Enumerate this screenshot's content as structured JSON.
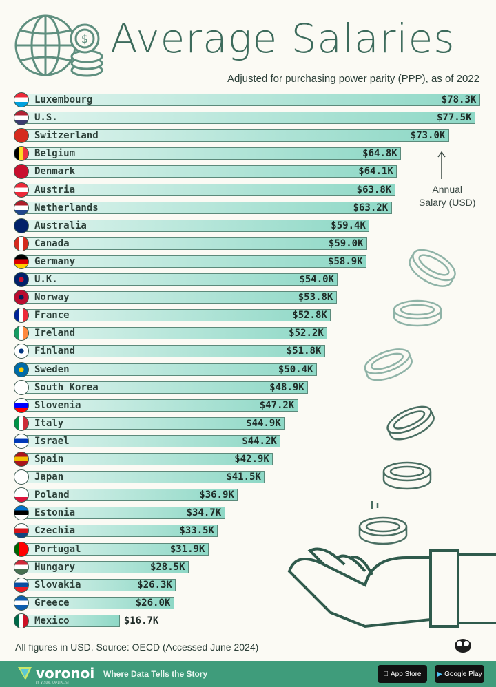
{
  "header": {
    "title": "Average Salaries",
    "subtitle": "Adjusted for purchasing power parity (PPP), as of 2022",
    "icons": [
      "globe-icon",
      "coin-stack-icon"
    ]
  },
  "annotation": {
    "line1": "Annual",
    "line2": "Salary (USD)"
  },
  "chart_data": {
    "type": "bar",
    "orientation": "horizontal",
    "title": "Average Salaries",
    "subtitle": "Adjusted for purchasing power parity (PPP), as of 2022",
    "unit": "Annual Salary (USD)",
    "categories": [
      "Luxembourg",
      "U.S.",
      "Switzerland",
      "Belgium",
      "Denmark",
      "Austria",
      "Netherlands",
      "Australia",
      "Canada",
      "Germany",
      "U.K.",
      "Norway",
      "France",
      "Ireland",
      "Finland",
      "Sweden",
      "South Korea",
      "Slovenia",
      "Italy",
      "Israel",
      "Spain",
      "Japan",
      "Poland",
      "Estonia",
      "Czechia",
      "Portugal",
      "Hungary",
      "Slovakia",
      "Greece",
      "Mexico"
    ],
    "values": [
      78.3,
      77.5,
      73.0,
      64.8,
      64.1,
      63.8,
      63.2,
      59.4,
      59.0,
      58.9,
      54.0,
      53.8,
      52.8,
      52.2,
      51.8,
      50.4,
      48.9,
      47.2,
      44.9,
      44.2,
      42.9,
      41.5,
      36.9,
      34.7,
      33.5,
      31.9,
      28.5,
      26.3,
      26.0,
      16.7
    ],
    "labels": [
      "$78.3K",
      "$77.5K",
      "$73.0K",
      "$64.8K",
      "$64.1K",
      "$63.8K",
      "$63.2K",
      "$59.4K",
      "$59.0K",
      "$58.9K",
      "$54.0K",
      "$53.8K",
      "$52.8K",
      "$52.2K",
      "$51.8K",
      "$50.4K",
      "$48.9K",
      "$47.2K",
      "$44.9K",
      "$44.2K",
      "$42.9K",
      "$41.5K",
      "$36.9K",
      "$34.7K",
      "$33.5K",
      "$31.9K",
      "$28.5K",
      "$26.3K",
      "$26.0K",
      "$16.7K"
    ],
    "value_unit": "thousand USD",
    "grid": false,
    "colors": {
      "bar_start": "#e0f4ee",
      "bar_end": "#8ed8c6",
      "bar_border": "#5c8a7b"
    }
  },
  "flags": [
    [
      "h",
      "#ed2939",
      "#fff",
      "#00a1de"
    ],
    [
      "h",
      "#b22234",
      "#fff",
      "#3c3b6e"
    ],
    [
      "c",
      "#d52b1e",
      "#d52b1e",
      "#d52b1e"
    ],
    [
      "v",
      "#000",
      "#fdda24",
      "#ef3340"
    ],
    [
      "c",
      "#c8102e",
      "#c8102e",
      "#c8102e"
    ],
    [
      "h",
      "#ed2939",
      "#fff",
      "#ed2939"
    ],
    [
      "h",
      "#ae1c28",
      "#fff",
      "#21468b"
    ],
    [
      "c",
      "#012169",
      "#012169",
      "#012169"
    ],
    [
      "v",
      "#d52b1e",
      "#fff",
      "#d52b1e"
    ],
    [
      "h",
      "#000",
      "#dd0000",
      "#ffce00"
    ],
    [
      "c",
      "#012169",
      "#c8102e",
      "#012169"
    ],
    [
      "c",
      "#ba0c2f",
      "#00205b",
      "#ba0c2f"
    ],
    [
      "v",
      "#002395",
      "#fff",
      "#ed2939"
    ],
    [
      "v",
      "#169b62",
      "#fff",
      "#ff883e"
    ],
    [
      "c",
      "#fff",
      "#003580",
      "#fff"
    ],
    [
      "c",
      "#006aa7",
      "#fecc00",
      "#006aa7"
    ],
    [
      "c",
      "#fff",
      "#fff",
      "#fff"
    ],
    [
      "h",
      "#fff",
      "#0000ff",
      "#ff0000"
    ],
    [
      "v",
      "#009246",
      "#fff",
      "#ce2b37"
    ],
    [
      "h",
      "#fff",
      "#0038b8",
      "#fff"
    ],
    [
      "h",
      "#aa151b",
      "#f1bf00",
      "#aa151b"
    ],
    [
      "c",
      "#fff",
      "#fff",
      "#fff"
    ],
    [
      "h",
      "#fff",
      "#fff",
      "#dc143c"
    ],
    [
      "h",
      "#0072ce",
      "#000",
      "#fff"
    ],
    [
      "h",
      "#fff",
      "#d7141a",
      "#11457e"
    ],
    [
      "v",
      "#006600",
      "#ff0000",
      "#ff0000"
    ],
    [
      "h",
      "#ce2939",
      "#fff",
      "#477050"
    ],
    [
      "h",
      "#fff",
      "#0b4ea2",
      "#ee1c25"
    ],
    [
      "h",
      "#0d5eaf",
      "#fff",
      "#0d5eaf"
    ],
    [
      "v",
      "#006847",
      "#fff",
      "#ce1126"
    ]
  ],
  "footer": {
    "source": "All figures in USD. Source: OECD (Accessed June 2024)",
    "brand": "voronoi",
    "brand_sub": "BY VISUAL CAPITALIST",
    "tagline": "Where Data Tells the Story",
    "app_store": "App Store",
    "google_play": "Google Play",
    "footer_color": "#3f9c7b"
  }
}
